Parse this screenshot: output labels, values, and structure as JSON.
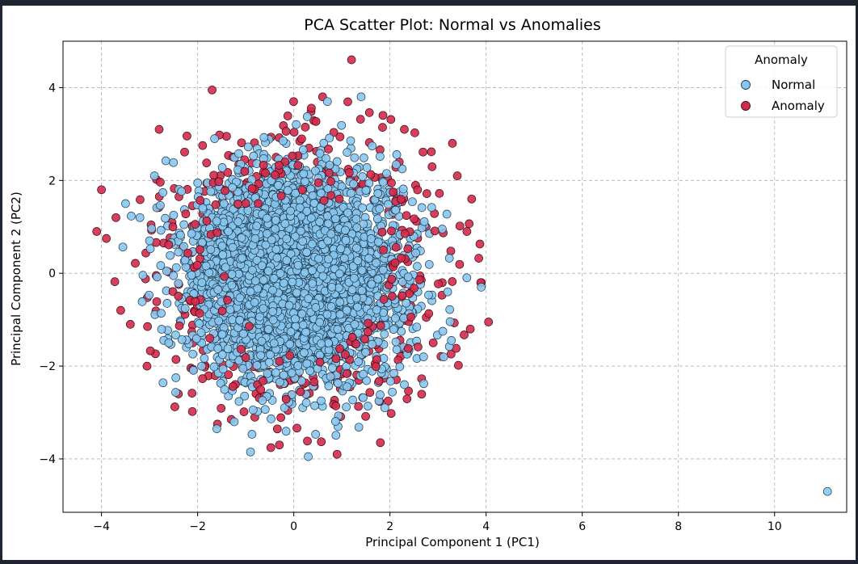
{
  "chart_data": {
    "type": "scatter",
    "title": "PCA Scatter Plot: Normal vs Anomalies",
    "xlabel": "Principal Component 1 (PC1)",
    "ylabel": "Principal Component 2 (PC2)",
    "xlim": [
      -4.8,
      11.5
    ],
    "ylim": [
      -5.15,
      5.0
    ],
    "xticks": [
      -4,
      -2,
      0,
      2,
      4,
      6,
      8,
      10
    ],
    "yticks": [
      -4,
      -2,
      0,
      2,
      4
    ],
    "xtick_labels": [
      "−4",
      "−2",
      "0",
      "2",
      "4",
      "6",
      "8",
      "10"
    ],
    "ytick_labels": [
      "−4",
      "−2",
      "0",
      "2",
      "4"
    ],
    "grid": true,
    "legend": {
      "title": "Anomaly",
      "position": "top-right"
    },
    "series": [
      {
        "name": "Normal",
        "color": "#89c6f0",
        "edge_color": "#1f3b4d",
        "description_points": [
          [
            11.1,
            -4.7
          ],
          [
            3.9,
            -0.3
          ],
          [
            3.1,
            -1.25
          ],
          [
            3.2,
            -0.4
          ],
          [
            -3.5,
            1.5
          ],
          [
            -3.2,
            1.2
          ],
          [
            -2.9,
            2.1
          ],
          [
            1.4,
            3.8
          ],
          [
            0.7,
            3.7
          ],
          [
            0.3,
            -3.95
          ],
          [
            -0.9,
            -3.85
          ],
          [
            -1.6,
            -3.35
          ],
          [
            2.3,
            -2.4
          ],
          [
            2.7,
            -1.8
          ],
          [
            -2.6,
            -1.5
          ],
          [
            -3.0,
            0.7
          ]
        ],
        "cluster": {
          "center": [
            0.0,
            0.0
          ],
          "sd": [
            1.05,
            1.05
          ],
          "count": 4200,
          "seed": 7
        }
      },
      {
        "name": "Anomaly",
        "color": "#d42a4a",
        "edge_color": "#3a0c15",
        "description_points": [
          [
            1.2,
            4.6
          ],
          [
            4.05,
            -1.05
          ],
          [
            -4.1,
            0.9
          ],
          [
            -4.0,
            1.8
          ],
          [
            -3.9,
            0.75
          ],
          [
            -3.6,
            -0.8
          ],
          [
            -1.7,
            3.95
          ],
          [
            -2.8,
            3.1
          ],
          [
            0.9,
            -3.9
          ],
          [
            1.8,
            -3.65
          ],
          [
            -2.1,
            -1.5
          ],
          [
            3.7,
            1.6
          ],
          [
            3.6,
            0.9
          ],
          [
            3.9,
            -0.2
          ],
          [
            3.4,
            2.1
          ],
          [
            2.9,
            -1.5
          ],
          [
            -3.4,
            -1.1
          ],
          [
            -2.4,
            -2.6
          ],
          [
            -0.3,
            -3.7
          ],
          [
            0.6,
            3.8
          ],
          [
            2.3,
            3.1
          ],
          [
            3.3,
            2.8
          ],
          [
            -1.3,
            -3.15
          ],
          [
            -3.7,
            1.2
          ]
        ],
        "ring": {
          "center": [
            0.1,
            0.0
          ],
          "r_min": 2.2,
          "r_max": 3.9,
          "count": 260,
          "seed": 19
        }
      }
    ]
  }
}
